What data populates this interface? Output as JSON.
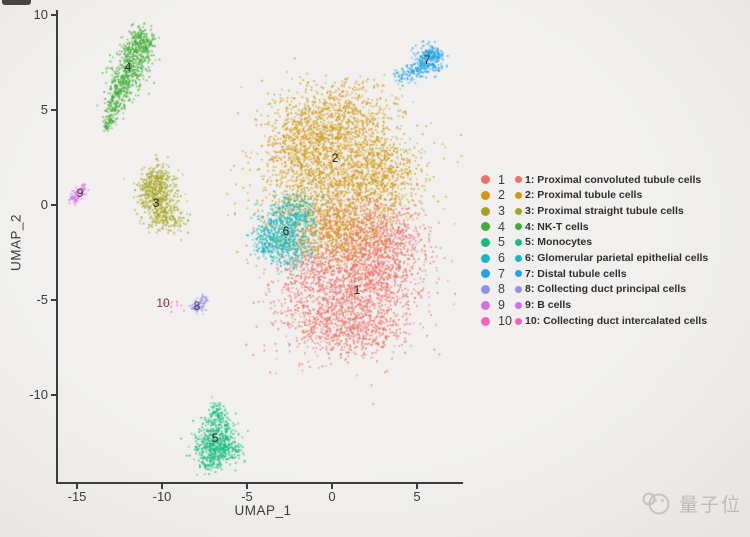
{
  "page": {
    "background": "#ECEAE7"
  },
  "watermark": {
    "text": "量子位"
  },
  "legend": {
    "numbers": [
      "1",
      "2",
      "3",
      "4",
      "5",
      "6",
      "7",
      "8",
      "9",
      "10"
    ],
    "entries": [
      "1: Proximal convoluted tubule cells",
      "2: Proximal tubule cells",
      "3: Proximal straight tubule cells",
      "4: NK-T cells",
      "5: Monocytes",
      "6: Glomerular parietal epithelial cells",
      "7: Distal tubule cells",
      "8: Collecting duct principal cells",
      "9: B cells",
      "10: Collecting duct intercalated cells"
    ]
  },
  "chart_data": {
    "type": "scatter",
    "subtype": "umap-single-cell-clusters",
    "title": "",
    "xlabel": "UMAP_1",
    "ylabel": "UMAP_2",
    "x_ticks": [
      -15,
      -10,
      -5,
      0,
      5
    ],
    "y_ticks": [
      10,
      5,
      0,
      -5,
      -10
    ],
    "xlim": [
      -16.12,
      7.65
    ],
    "ylim": [
      -14.63,
      10.26
    ],
    "grid": false,
    "legend_position": "right",
    "draw_order": [
      2,
      1,
      6,
      4,
      3,
      5,
      7,
      9,
      8,
      10
    ],
    "clusters": [
      {
        "id": 1,
        "name": "Proximal convoluted tubule cells",
        "color": "#EE7067",
        "label": {
          "x": 1.47,
          "y": -4.47,
          "color": "#262626"
        },
        "blobs": [
          [
            1.06,
            -4.47,
            2.06,
            1.58,
            900
          ],
          [
            2.53,
            -3.16,
            1.47,
            1.16,
            600
          ],
          [
            -0.12,
            -6.05,
            1.76,
            1.05,
            450
          ],
          [
            3.41,
            -1.58,
            1.18,
            0.95,
            300
          ],
          [
            1.65,
            -6.58,
            1.47,
            0.63,
            250
          ],
          [
            -1.29,
            -3.42,
            1.06,
            0.95,
            250
          ],
          [
            1.35,
            -1.05,
            1.76,
            0.63,
            150
          ]
        ]
      },
      {
        "id": 2,
        "name": "Proximal tubule cells",
        "color": "#D3970F",
        "label": {
          "x": 0.18,
          "y": 2.47,
          "color": "#262626"
        },
        "blobs": [
          [
            -0.12,
            4.47,
            1.76,
            1.05,
            800
          ],
          [
            0.47,
            2.11,
            2.24,
            1.32,
            1000
          ],
          [
            -1.0,
            -0.53,
            1.65,
            1.16,
            700
          ],
          [
            2.71,
            1.32,
            1.29,
            1.16,
            500
          ],
          [
            -1.88,
            2.89,
            1.06,
            1.05,
            300
          ],
          [
            0.76,
            -1.32,
            1.47,
            0.79,
            350
          ],
          [
            3.71,
            5.63,
            0.35,
            0.21,
            12
          ],
          [
            1.65,
            6.32,
            0.59,
            0.26,
            20
          ],
          [
            0.47,
            -2.37,
            1.47,
            0.53,
            120
          ]
        ]
      },
      {
        "id": 3,
        "name": "Proximal straight tubule cells",
        "color": "#A5A421",
        "label": {
          "x": -10.35,
          "y": 0.11,
          "color": "#262626"
        },
        "blobs": [
          [
            -10.35,
            1.32,
            0.53,
            0.53,
            200
          ],
          [
            -10.24,
            0.26,
            0.59,
            0.63,
            250
          ],
          [
            -9.71,
            -0.68,
            0.53,
            0.37,
            130
          ],
          [
            -10.71,
            0.68,
            0.35,
            0.53,
            100
          ]
        ]
      },
      {
        "id": 4,
        "name": "NK-T cells",
        "color": "#3EAE35",
        "label": {
          "x": -12.0,
          "y": 7.26,
          "color": "#262626"
        },
        "blobs": [
          [
            -11.29,
            8.89,
            0.35,
            0.32,
            90
          ],
          [
            -10.94,
            8.37,
            0.24,
            0.32,
            50
          ],
          [
            -11.53,
            8.26,
            0.47,
            0.42,
            140
          ],
          [
            -11.82,
            7.53,
            0.53,
            0.47,
            160
          ],
          [
            -12.12,
            6.79,
            0.53,
            0.42,
            150
          ],
          [
            -12.47,
            6.05,
            0.41,
            0.37,
            120
          ],
          [
            -12.82,
            5.32,
            0.29,
            0.32,
            80
          ],
          [
            -13.12,
            4.63,
            0.21,
            0.26,
            50
          ],
          [
            -13.29,
            4.16,
            0.12,
            0.16,
            25
          ]
        ]
      },
      {
        "id": 5,
        "name": "Monocytes",
        "color": "#16BC81",
        "label": {
          "x": -6.88,
          "y": -12.26,
          "color": "#262626"
        },
        "blobs": [
          [
            -6.76,
            -10.68,
            0.24,
            0.26,
            50
          ],
          [
            -6.88,
            -11.42,
            0.41,
            0.37,
            120
          ],
          [
            -6.94,
            -12.21,
            0.65,
            0.42,
            200
          ],
          [
            -6.88,
            -12.89,
            0.71,
            0.37,
            220
          ],
          [
            -7.18,
            -13.53,
            0.35,
            0.26,
            80
          ],
          [
            -6.12,
            -12.79,
            0.35,
            0.32,
            70
          ]
        ]
      },
      {
        "id": 6,
        "name": "Glomerular parietal epithelial cells",
        "color": "#17B8BE",
        "label": {
          "x": -2.71,
          "y": -1.37,
          "color": "#262626"
        },
        "blobs": [
          [
            -2.88,
            -1.05,
            0.82,
            0.74,
            350
          ],
          [
            -2.76,
            -2.26,
            0.82,
            0.53,
            250
          ],
          [
            -2.06,
            -0.42,
            0.59,
            0.53,
            150
          ],
          [
            -3.76,
            -1.74,
            0.47,
            0.53,
            120
          ]
        ]
      },
      {
        "id": 7,
        "name": "Distal tubule cells",
        "color": "#24A4E4",
        "label": {
          "x": 5.59,
          "y": 7.63,
          "color": "#262626"
        },
        "blobs": [
          [
            5.59,
            7.63,
            0.47,
            0.37,
            220
          ],
          [
            5.88,
            8.05,
            0.29,
            0.21,
            70
          ],
          [
            4.82,
            7.11,
            0.35,
            0.21,
            60
          ],
          [
            4.12,
            6.79,
            0.29,
            0.16,
            35
          ]
        ]
      },
      {
        "id": 8,
        "name": "Collecting duct principal cells",
        "color": "#9490EA",
        "label": {
          "x": -7.94,
          "y": -5.32,
          "color": "#45435e"
        },
        "blobs": [
          [
            -8.06,
            -5.42,
            0.18,
            0.16,
            40
          ],
          [
            -7.76,
            -5.16,
            0.18,
            0.16,
            35
          ],
          [
            -7.53,
            -4.89,
            0.12,
            0.11,
            15
          ]
        ]
      },
      {
        "id": 9,
        "name": "B cells",
        "color": "#D76EE8",
        "label": {
          "x": -14.82,
          "y": 0.63,
          "color": "#54394f"
        },
        "blobs": [
          [
            -15.24,
            0.37,
            0.18,
            0.16,
            35
          ],
          [
            -14.94,
            0.63,
            0.18,
            0.16,
            35
          ],
          [
            -14.65,
            0.89,
            0.12,
            0.11,
            20
          ]
        ]
      },
      {
        "id": 10,
        "name": "Collecting duct intercalated cells",
        "color": "#F264BA",
        "label": {
          "x": -9.94,
          "y": -5.16,
          "color": "#7d3540"
        },
        "blobs": [
          [
            -9.41,
            -5.26,
            0.29,
            0.21,
            12
          ]
        ]
      }
    ]
  }
}
